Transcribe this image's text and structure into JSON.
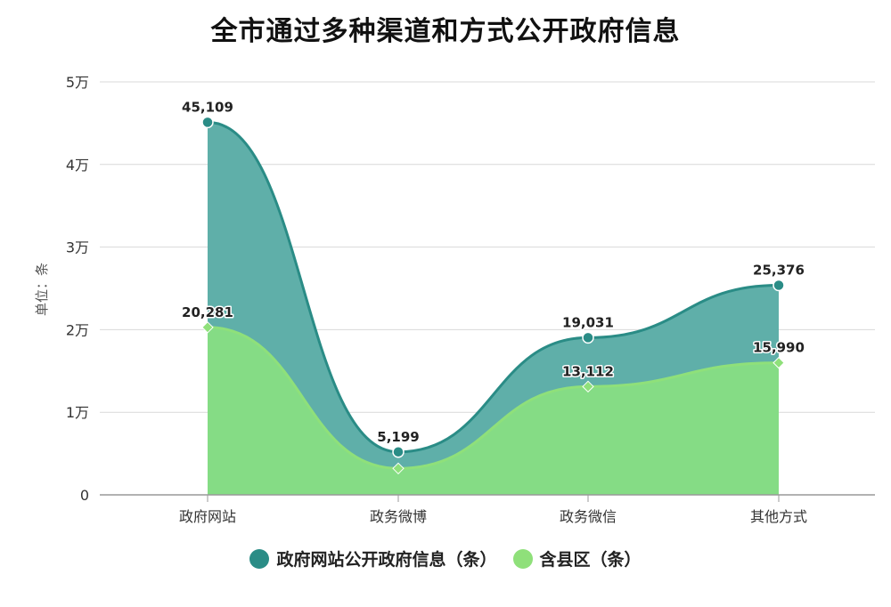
{
  "chart_data": {
    "type": "area",
    "title": "全市通过多种渠道和方式公开政府信息",
    "ylabel": "单位：条",
    "xlabel": "",
    "categories": [
      "政府网站",
      "政务微博",
      "政务微信",
      "其他方式"
    ],
    "ylim": [
      0,
      50000
    ],
    "yticks": [
      {
        "value": 0,
        "label": "0"
      },
      {
        "value": 10000,
        "label": "1万"
      },
      {
        "value": 20000,
        "label": "2万"
      },
      {
        "value": 30000,
        "label": "3万"
      },
      {
        "value": 40000,
        "label": "4万"
      },
      {
        "value": 50000,
        "label": "5万"
      }
    ],
    "grid": true,
    "legend_position": "bottom",
    "series": [
      {
        "name": "政府网站公开政府信息（条）",
        "values": [
          45109,
          5199,
          19031,
          25376
        ],
        "labels": [
          "45,109",
          "5,199",
          "19,031",
          "25,376"
        ],
        "color": "#2a8c86",
        "fill": "#5fafa9",
        "marker": "circle"
      },
      {
        "name": "含县区（条）",
        "values": [
          20281,
          3200,
          13112,
          15990
        ],
        "labels": [
          "20,281",
          "",
          "13,112",
          "15,990"
        ],
        "color": "#8fe07a",
        "fill": "#85dc85",
        "marker": "diamond"
      }
    ]
  }
}
